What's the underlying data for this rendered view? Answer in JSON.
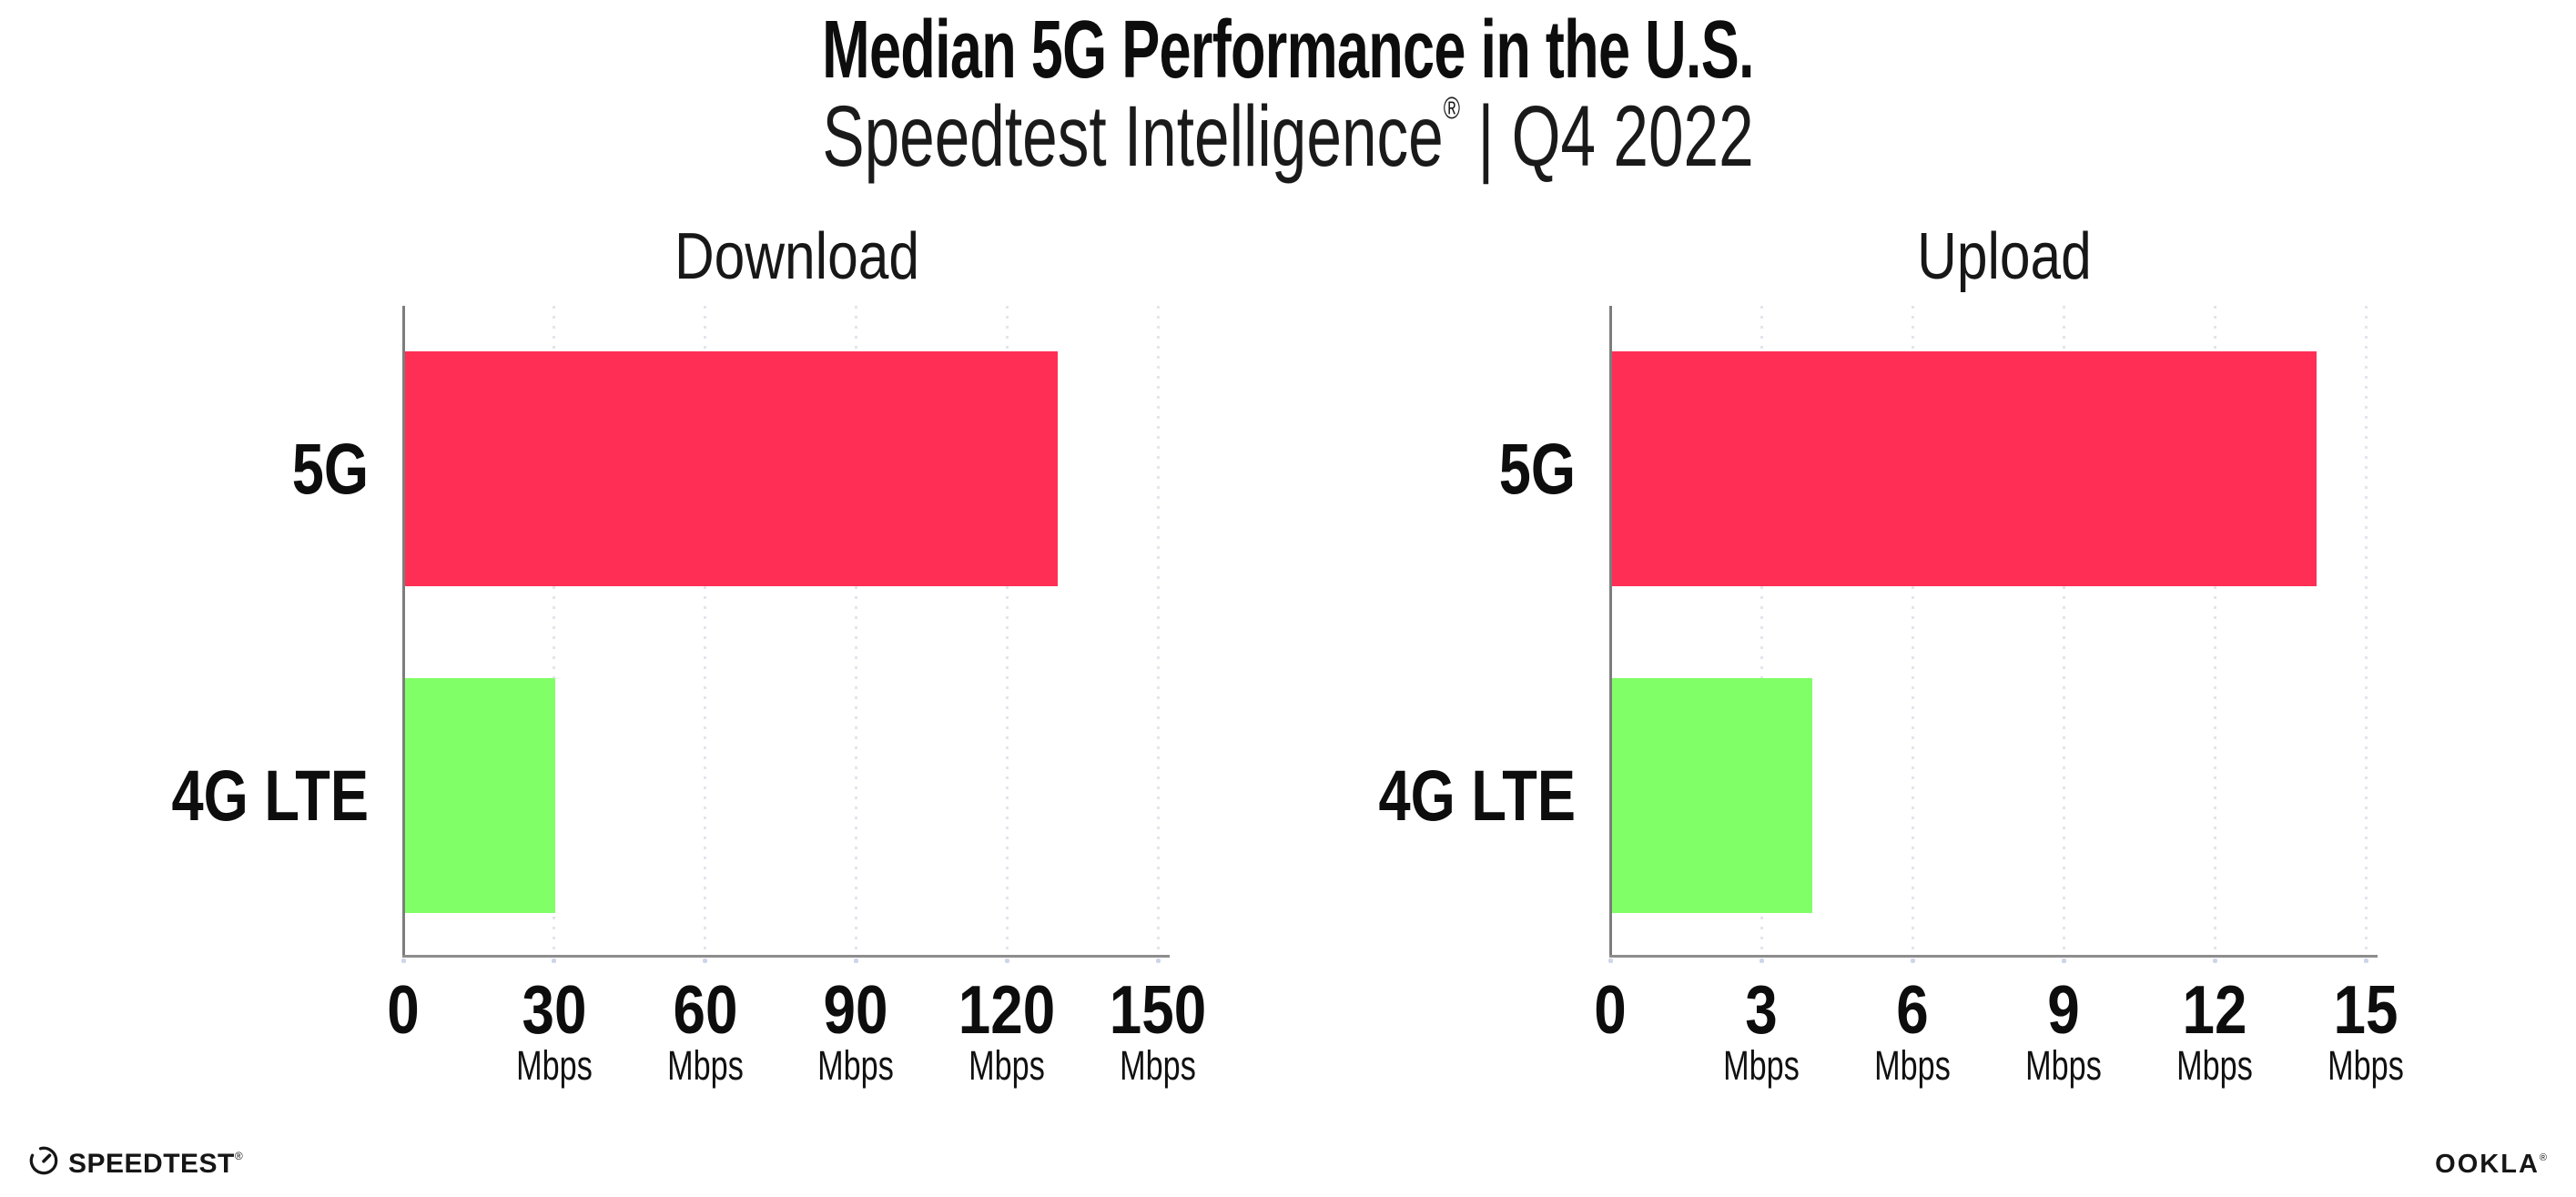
{
  "header": {
    "title": "Median 5G Performance in the U.S.",
    "subtitle": {
      "brand": "Speedtest Intelligence",
      "registered_mark": "®",
      "rest": " | Q4 2022"
    }
  },
  "chart_data": [
    {
      "type": "bar",
      "orientation": "horizontal",
      "title": "Download",
      "categories": [
        "5G",
        "4G LTE"
      ],
      "values": [
        130,
        30
      ],
      "unit": "Mbps",
      "xlim": [
        0,
        150
      ],
      "xticks": [
        0,
        30,
        60,
        90,
        120,
        150
      ],
      "bar_colors": [
        "#ff2e55",
        "#80ff66"
      ],
      "grid": "dotted-vertical",
      "legend": "none"
    },
    {
      "type": "bar",
      "orientation": "horizontal",
      "title": "Upload",
      "categories": [
        "5G",
        "4G LTE"
      ],
      "values": [
        14,
        4
      ],
      "unit": "Mbps",
      "xlim": [
        0,
        15
      ],
      "xticks": [
        0,
        3,
        6,
        9,
        12,
        15
      ],
      "bar_colors": [
        "#ff2e55",
        "#80ff66"
      ],
      "grid": "dotted-vertical",
      "legend": "none"
    }
  ],
  "colors": {
    "bar_5g": "#ff2e55",
    "bar_4g_lte": "#80ff66",
    "gridline": "#e4e4ee",
    "y_axis": "#7d7d7d",
    "x_axis": "#8d8d8d",
    "tick_dot": "#cdd5e8",
    "text": "#141414",
    "background": "#ffffff"
  },
  "footer": {
    "speedtest_wordmark": "SPEEDTEST",
    "speedtest_registered_mark": "®",
    "speedtest_icon": "gauge-icon",
    "ookla_wordmark": "OOKLA",
    "ookla_registered_mark": "®"
  }
}
